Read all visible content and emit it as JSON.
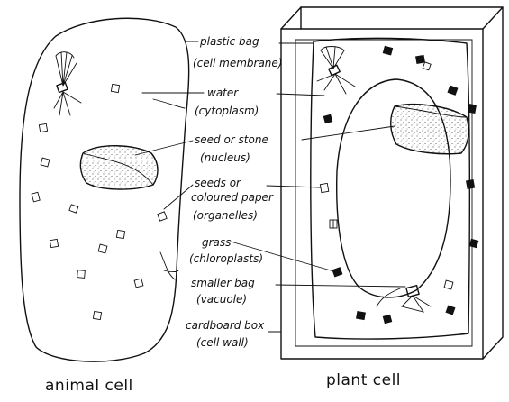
{
  "labels": {
    "plastic_bag": "plastic bag",
    "cell_membrane": "(cell membrane)",
    "water": "water",
    "cytoplasm": "(cytoplasm)",
    "seed_or_stone": "seed or stone",
    "nucleus": "(nucleus)",
    "seeds_or": "seeds or",
    "coloured_paper": "coloured paper",
    "organelles": "(organelles)",
    "grass": "grass",
    "chloroplasts": "(chloroplasts)",
    "smaller_bag": "smaller bag",
    "vacuole": "(vacuole)",
    "cardboard_box": "cardboard box",
    "cell_wall": "(cell wall)"
  },
  "captions": {
    "animal": "animal cell",
    "plant": "plant cell"
  }
}
